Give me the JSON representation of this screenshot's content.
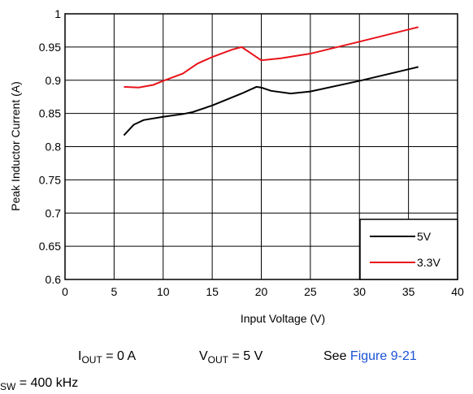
{
  "chart_data": {
    "type": "line",
    "xlabel": "Input Voltage (V)",
    "ylabel": "Peak Inductor Current (A)",
    "xlim": [
      0,
      40
    ],
    "xticks": [
      0,
      5,
      10,
      15,
      20,
      25,
      30,
      35,
      40
    ],
    "ylim": [
      0.6,
      1
    ],
    "yticks": [
      0.6,
      0.65,
      0.7,
      0.75,
      0.8,
      0.85,
      0.9,
      0.95,
      1
    ],
    "grid": true,
    "legend": "lower right",
    "series": [
      {
        "name": "5V",
        "color": "#000000",
        "x": [
          6,
          7,
          8,
          10,
          12,
          13,
          15,
          18,
          19.5,
          20,
          21,
          23,
          25,
          30,
          36
        ],
        "values": [
          0.817,
          0.833,
          0.84,
          0.845,
          0.849,
          0.852,
          0.862,
          0.88,
          0.89,
          0.889,
          0.884,
          0.88,
          0.883,
          0.899,
          0.92
        ]
      },
      {
        "name": "3.3V",
        "color": "#e8141b",
        "x": [
          6,
          7.5,
          9,
          10,
          12,
          13.5,
          15,
          17,
          18,
          19,
          20,
          22,
          25,
          30,
          36
        ],
        "values": [
          0.89,
          0.889,
          0.893,
          0.899,
          0.91,
          0.925,
          0.935,
          0.946,
          0.95,
          0.94,
          0.93,
          0.933,
          0.94,
          0.958,
          0.98
        ]
      }
    ]
  },
  "notes": {
    "iout": {
      "main": "I",
      "sub": "OUT",
      "rest": " = 0 A"
    },
    "vout": {
      "main": "V",
      "sub": "OUT",
      "rest": " = 5 V"
    },
    "see": {
      "text": "See ",
      "link": "Figure 9-21"
    },
    "fsw": {
      "sub": "SW",
      "rest": " = 400 kHz"
    }
  }
}
